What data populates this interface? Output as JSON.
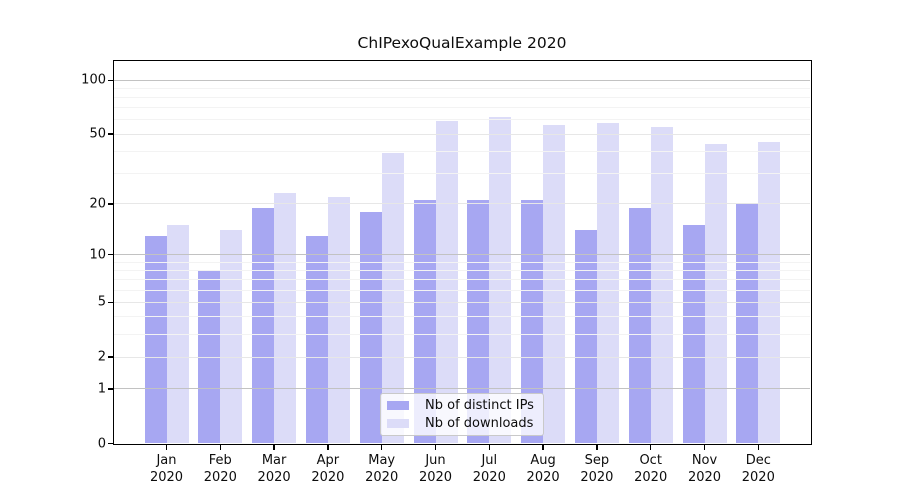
{
  "title": "ChIPexoQualExample 2020",
  "colors": {
    "distinct_ips": "#a7a7f2",
    "downloads": "#dcdcf8",
    "grid_major": "#c2c2c2",
    "grid_mid": "#e7e7e7",
    "grid_minor": "#f3f3f3",
    "spine": "#000000"
  },
  "chart_data": {
    "type": "bar",
    "title": "ChIPexoQualExample 2020",
    "categories": [
      "Jan",
      "Feb",
      "Mar",
      "Apr",
      "May",
      "Jun",
      "Jul",
      "Aug",
      "Sep",
      "Oct",
      "Nov",
      "Dec"
    ],
    "year": "2020",
    "series": [
      {
        "name": "Nb of distinct IPs",
        "color": "#a7a7f2",
        "values": [
          13,
          8,
          19,
          13,
          18,
          21,
          21,
          21,
          14,
          19,
          15,
          20
        ]
      },
      {
        "name": "Nb of downloads",
        "color": "#dcdcf8",
        "values": [
          15,
          14,
          23,
          22,
          39,
          59,
          62,
          56,
          58,
          55,
          44,
          45
        ]
      }
    ],
    "yscale": "log1p",
    "ylim": [
      0,
      128
    ],
    "yticks": [
      0,
      1,
      2,
      5,
      10,
      20,
      50,
      100
    ],
    "grid_major_values": [
      1,
      10,
      100
    ],
    "grid_mid_values": [
      2,
      5,
      20,
      50
    ],
    "grid_minor_values": [
      3,
      4,
      6,
      7,
      8,
      9,
      30,
      40,
      60,
      70,
      80,
      90
    ],
    "grid": "on",
    "legend_position": "lower center",
    "xlabel": "",
    "ylabel": ""
  }
}
